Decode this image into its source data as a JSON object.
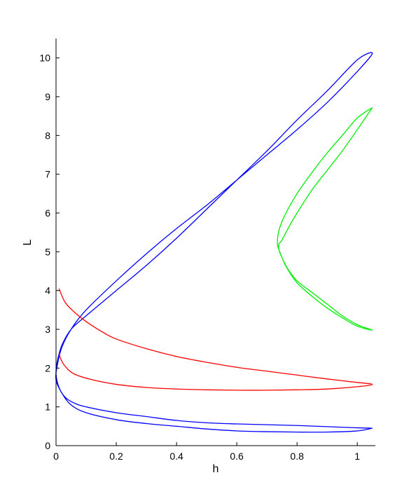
{
  "chart_data": {
    "type": "line",
    "title": "",
    "xlabel": "h",
    "ylabel": "L",
    "xlim": [
      0,
      1.06
    ],
    "ylim": [
      0,
      10.5
    ],
    "xticks": [
      0,
      0.2,
      0.4,
      0.6,
      0.8,
      1
    ],
    "xtick_labels": [
      "0",
      "0.2",
      "0.4",
      "0.6",
      "0.8",
      "1"
    ],
    "yticks": [
      0,
      1,
      2,
      3,
      4,
      5,
      6,
      7,
      8,
      9,
      10
    ],
    "ytick_labels": [
      "0",
      "1",
      "2",
      "3",
      "4",
      "5",
      "6",
      "7",
      "8",
      "9",
      "10"
    ],
    "grid": false,
    "legend": "none",
    "series": [
      {
        "color": "#0000ff",
        "x": [
          1.05,
          1.0,
          0.9,
          0.8,
          0.7,
          0.6,
          0.5,
          0.4,
          0.3,
          0.2,
          0.1,
          0.05,
          0.02,
          0.0,
          0.005,
          0.02,
          0.05,
          0.1,
          0.2,
          0.3,
          0.4,
          0.5,
          0.6,
          0.7,
          0.8,
          0.9,
          1.0,
          1.05,
          1.0,
          0.9,
          0.8,
          0.7,
          0.6,
          0.5,
          0.4,
          0.3,
          0.2,
          0.1,
          0.05,
          0.02,
          0.005,
          0.0,
          0.01,
          0.03,
          0.06,
          0.1,
          0.2,
          0.3,
          0.4,
          0.5,
          0.6,
          0.7,
          0.8,
          0.9,
          1.0,
          1.05
        ],
        "y": [
          0.45,
          0.38,
          0.35,
          0.35,
          0.36,
          0.38,
          0.43,
          0.5,
          0.57,
          0.67,
          0.85,
          1.05,
          1.35,
          1.7,
          2.1,
          2.55,
          3.0,
          3.5,
          4.25,
          4.95,
          5.6,
          6.2,
          6.85,
          7.5,
          8.15,
          8.85,
          9.65,
          10.12,
          9.95,
          9.15,
          8.4,
          7.6,
          6.85,
          6.1,
          5.35,
          4.65,
          4.0,
          3.35,
          3.0,
          2.6,
          2.2,
          1.85,
          1.5,
          1.25,
          1.1,
          1.0,
          0.85,
          0.75,
          0.65,
          0.59,
          0.56,
          0.54,
          0.52,
          0.49,
          0.46,
          0.45
        ]
      },
      {
        "color": "#ff0000",
        "x": [
          0.01,
          0.03,
          0.06,
          0.1,
          0.15,
          0.2,
          0.3,
          0.4,
          0.5,
          0.6,
          0.7,
          0.8,
          0.9,
          1.0,
          1.05,
          1.0,
          0.9,
          0.8,
          0.7,
          0.6,
          0.5,
          0.4,
          0.3,
          0.2,
          0.12,
          0.06,
          0.03,
          0.015,
          0.01
        ],
        "y": [
          4.05,
          3.7,
          3.45,
          3.2,
          2.95,
          2.75,
          2.5,
          2.3,
          2.15,
          2.02,
          1.92,
          1.82,
          1.72,
          1.63,
          1.58,
          1.52,
          1.46,
          1.44,
          1.43,
          1.43,
          1.44,
          1.46,
          1.5,
          1.58,
          1.7,
          1.85,
          2.05,
          2.25,
          2.38
        ]
      },
      {
        "color": "#00ee00",
        "x": [
          1.05,
          1.0,
          0.95,
          0.9,
          0.85,
          0.8,
          0.77,
          0.75,
          0.74,
          0.74,
          0.75,
          0.77,
          0.8,
          0.85,
          0.9,
          0.95,
          1.0,
          1.05,
          1.0,
          0.95,
          0.9,
          0.85,
          0.8,
          0.765,
          0.745,
          0.735,
          0.74,
          0.76,
          0.8,
          0.85,
          0.9,
          0.95,
          1.0,
          1.05
        ],
        "y": [
          8.72,
          8.15,
          7.6,
          7.1,
          6.6,
          6.0,
          5.6,
          5.3,
          5.2,
          5.05,
          4.85,
          4.55,
          4.25,
          3.95,
          3.65,
          3.35,
          3.12,
          2.98,
          3.08,
          3.3,
          3.55,
          3.85,
          4.2,
          4.6,
          4.95,
          5.2,
          5.55,
          5.95,
          6.5,
          7.05,
          7.55,
          8.0,
          8.45,
          8.72
        ]
      }
    ]
  }
}
